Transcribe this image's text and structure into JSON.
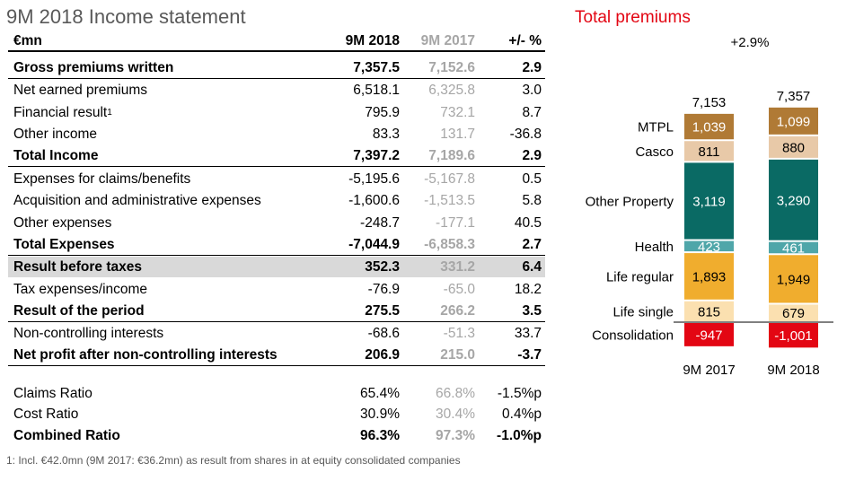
{
  "page": {
    "title": "9M 2018 Income statement",
    "footnote": "1: Incl. €42.0mn (9M 2017: €36.2mn) as result from shares in at equity consolidated companies"
  },
  "table": {
    "headers": {
      "label": "€mn",
      "current": "9M 2018",
      "previous": "9M 2017",
      "change": "+/- %"
    },
    "rows": [
      {
        "label": "Gross premiums written",
        "current": "7,357.5",
        "previous": "7,152.6",
        "change": "2.9",
        "bold": true
      },
      {
        "label": "Net earned premiums",
        "current": "6,518.1",
        "previous": "6,325.8",
        "change": "3.0",
        "bold": false
      },
      {
        "label": "Financial result",
        "sup": "1",
        "current": "795.9",
        "previous": "732.1",
        "change": "8.7",
        "bold": false
      },
      {
        "label": "Other income",
        "current": "83.3",
        "previous": "131.7",
        "change": "-36.8",
        "bold": false
      },
      {
        "label": "Total Income",
        "current": "7,397.2",
        "previous": "7,189.6",
        "change": "2.9",
        "bold": true
      },
      {
        "label": "Expenses for claims/benefits",
        "current": "-5,195.6",
        "previous": "-5,167.8",
        "change": "0.5",
        "bold": false
      },
      {
        "label": "Acquisition and administrative expenses",
        "current": "-1,600.6",
        "previous": "-1,513.5",
        "change": "5.8",
        "bold": false
      },
      {
        "label": "Other expenses",
        "current": "-248.7",
        "previous": "-177.1",
        "change": "40.5",
        "bold": false
      },
      {
        "label": "Total Expenses",
        "current": "-7,044.9",
        "previous": "-6,858.3",
        "change": "2.7",
        "bold": true
      },
      {
        "label": "Result before taxes",
        "current": "352.3",
        "previous": "331.2",
        "change": "6.4",
        "bold": true,
        "shaded": true
      },
      {
        "label": "Tax expenses/income",
        "current": "-76.9",
        "previous": "-65.0",
        "change": "18.2",
        "bold": false
      },
      {
        "label": "Result of the period",
        "current": "275.5",
        "previous": "266.2",
        "change": "3.5",
        "bold": true
      },
      {
        "label": "Non-controlling interests",
        "current": "-68.6",
        "previous": "-51.3",
        "change": "33.7",
        "bold": false
      },
      {
        "label": "Net profit after non-controlling interests",
        "current": "206.9",
        "previous": "215.0",
        "change": "-3.7",
        "bold": true
      }
    ],
    "ratios": [
      {
        "label": "Claims Ratio",
        "current": "65.4%",
        "previous": "66.8%",
        "change": "-1.5%p",
        "bold": false
      },
      {
        "label": "Cost Ratio",
        "current": "30.9%",
        "previous": "30.4%",
        "change": "0.4%p",
        "bold": false
      },
      {
        "label": "Combined Ratio",
        "current": "96.3%",
        "previous": "97.3%",
        "change": "-1.0%p",
        "bold": true
      }
    ]
  },
  "chart_data": {
    "type": "bar",
    "stacked": true,
    "title": "Total premiums",
    "growth_label": "+2.9%",
    "categories": [
      "9M 2017",
      "9M 2018"
    ],
    "totals": [
      7153,
      7357
    ],
    "total_labels": [
      "7,153",
      "7,357"
    ],
    "series": [
      {
        "name": "Consolidation",
        "values": [
          -947,
          -1001
        ],
        "labels": [
          "-947",
          "-1,001"
        ],
        "color": "#e30613",
        "text_color": "#ffffff"
      },
      {
        "name": "Life single",
        "values": [
          815,
          679
        ],
        "labels": [
          "815",
          "679"
        ],
        "color": "#fbe0b0",
        "text_color": "#000000"
      },
      {
        "name": "Life regular",
        "values": [
          1893,
          1949
        ],
        "labels": [
          "1,893",
          "1,949"
        ],
        "color": "#f0ad2e",
        "text_color": "#000000"
      },
      {
        "name": "Health",
        "values": [
          423,
          461
        ],
        "labels": [
          "423",
          "461"
        ],
        "color": "#4fa6a9",
        "text_color": "#ffffff"
      },
      {
        "name": "Other Property",
        "values": [
          3119,
          3290
        ],
        "labels": [
          "3,119",
          "3,290"
        ],
        "color": "#0a6a64",
        "text_color": "#ffffff"
      },
      {
        "name": "Casco",
        "values": [
          811,
          880
        ],
        "labels": [
          "811",
          "880"
        ],
        "color": "#e8c9a8",
        "text_color": "#000000"
      },
      {
        "name": "MTPL",
        "values": [
          1039,
          1099
        ],
        "labels": [
          "1,039",
          "1,099"
        ],
        "color": "#b07a35",
        "text_color": "#ffffff"
      }
    ],
    "colors": {
      "title": "#e30613",
      "grey_text": "#595959"
    }
  }
}
